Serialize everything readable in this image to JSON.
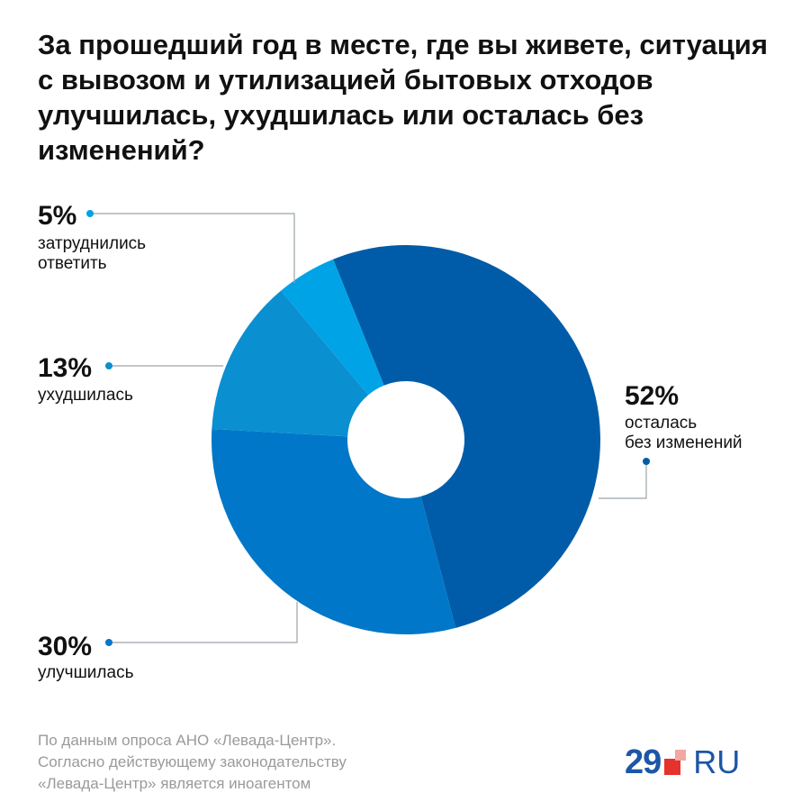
{
  "title": "За прошедший год в месте, где вы живете, ситуация с вывозом и утилизацией бытовых отходов улучшилась, ухудшилась или осталась без изменений?",
  "chart_data": {
    "type": "pie",
    "style": "donut",
    "slices": [
      {
        "value": 52,
        "label": "52%",
        "line1": "осталась",
        "line2": "без изменений",
        "color": "#005ca8"
      },
      {
        "value": 30,
        "label": "30%",
        "line1": "улучшилась",
        "line2": "",
        "color": "#0077c8"
      },
      {
        "value": 13,
        "label": "13%",
        "line1": "ухудшилась",
        "line2": "",
        "color": "#0a8fd0"
      },
      {
        "value": 5,
        "label": "5%",
        "line1": "затруднились",
        "line2": "ответить",
        "color": "#00a3e6"
      }
    ]
  },
  "source": {
    "line1": "По данным опроса АНО «Левада-Центр».",
    "line2": "Согласно действующему законодательству",
    "line3": "«Левада-Центр» является иноагентом"
  },
  "logo": {
    "number": "29",
    "suffix": "RU",
    "color": "#1d56a6",
    "accent": "#e5322d"
  }
}
